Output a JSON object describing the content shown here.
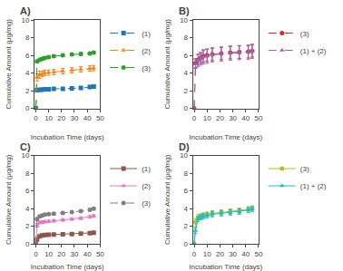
{
  "chart_data": [
    {
      "type": "line",
      "title": "A)",
      "xlabel": "Incubation Time (days)",
      "ylabel": "Cumulative Amount (μg/mg)",
      "x": [
        0,
        1,
        3,
        5,
        7,
        10,
        14,
        21,
        28,
        35,
        42,
        45
      ],
      "series": [
        {
          "name": "(1)",
          "marker": "square",
          "line_style": "dashed",
          "values": [
            0,
            2.05,
            2.1,
            2.1,
            2.15,
            2.15,
            2.2,
            2.2,
            2.25,
            2.3,
            2.4,
            2.45
          ],
          "errors": [
            0,
            0.08,
            0.08,
            0.08,
            0.08,
            0.08,
            0.08,
            0.08,
            0.08,
            0.08,
            0.08,
            0.08
          ]
        },
        {
          "name": "(2)",
          "marker": "triangle",
          "line_style": "dashed",
          "values": [
            0,
            3.5,
            3.8,
            3.9,
            4.0,
            4.05,
            4.1,
            4.2,
            4.3,
            4.4,
            4.5,
            4.55
          ],
          "errors": [
            0,
            0.4,
            0.4,
            0.3,
            0.3,
            0.3,
            0.3,
            0.3,
            0.3,
            0.3,
            0.3,
            0.3
          ]
        },
        {
          "name": "(3)",
          "marker": "circle",
          "line_style": "dashed",
          "values": [
            0,
            5.3,
            5.5,
            5.6,
            5.7,
            5.8,
            5.9,
            6.0,
            6.1,
            6.15,
            6.2,
            6.3
          ],
          "errors": [
            0,
            0.15,
            0.15,
            0.15,
            0.15,
            0.15,
            0.15,
            0.15,
            0.15,
            0.15,
            0.15,
            0.15
          ]
        }
      ],
      "xlim": [
        -1,
        50
      ],
      "ylim": [
        0,
        10
      ],
      "xticks": [
        0,
        10,
        20,
        30,
        40,
        50
      ],
      "yticks": [
        0,
        2,
        4,
        6,
        8,
        10
      ],
      "grid": false,
      "legend": "right"
    },
    {
      "type": "line",
      "title": "B)",
      "xlabel": "Incubation Time (days)",
      "ylabel": "Cumulative Amount (μg/mg)",
      "x": [
        0,
        1,
        3,
        5,
        7,
        10,
        14,
        21,
        28,
        35,
        42,
        45
      ],
      "series": [
        {
          "name": "(3)",
          "marker": "circle",
          "line_style": "dashed",
          "values": [
            0,
            5.1,
            5.5,
            5.7,
            5.9,
            6.0,
            6.1,
            6.2,
            6.3,
            6.35,
            6.4,
            6.5
          ],
          "errors": [
            0,
            0.5,
            0.6,
            0.6,
            0.7,
            0.7,
            0.7,
            0.7,
            0.7,
            0.7,
            0.7,
            0.7
          ]
        },
        {
          "name": "(1) + (2)",
          "marker": "triangle",
          "line_style": "dashed",
          "values": [
            0,
            5.0,
            5.4,
            5.6,
            5.8,
            5.9,
            6.05,
            6.15,
            6.25,
            6.3,
            6.35,
            6.45
          ],
          "errors": [
            0,
            0.5,
            0.7,
            0.7,
            0.8,
            0.8,
            0.8,
            0.8,
            0.8,
            0.8,
            0.8,
            0.8
          ]
        }
      ],
      "xlim": [
        -1,
        50
      ],
      "ylim": [
        0,
        10
      ],
      "xticks": [
        0,
        10,
        20,
        30,
        40,
        50
      ],
      "yticks": [
        0,
        2,
        4,
        6,
        8,
        10
      ],
      "grid": false,
      "legend": "right"
    },
    {
      "type": "line",
      "title": "C)",
      "xlabel": "Incubation Time (days)",
      "ylabel": "Cumulative Amount (μg/mg)",
      "x": [
        0,
        1,
        3,
        5,
        7,
        10,
        14,
        21,
        28,
        35,
        42,
        45
      ],
      "series": [
        {
          "name": "(1)",
          "marker": "square",
          "line_style": "solid",
          "values": [
            0,
            0.5,
            0.85,
            0.95,
            1.0,
            1.02,
            1.05,
            1.08,
            1.1,
            1.15,
            1.2,
            1.25
          ],
          "errors": [
            0,
            0.15,
            0.1,
            0.1,
            0.1,
            0.1,
            0.1,
            0.1,
            0.1,
            0.1,
            0.1,
            0.1
          ]
        },
        {
          "name": "(2)",
          "marker": "triangle",
          "line_style": "solid",
          "values": [
            0,
            2.1,
            2.4,
            2.45,
            2.5,
            2.55,
            2.6,
            2.7,
            2.8,
            2.9,
            3.05,
            3.15
          ],
          "errors": [
            0,
            0.2,
            0.15,
            0.15,
            0.15,
            0.15,
            0.15,
            0.15,
            0.15,
            0.15,
            0.15,
            0.15
          ]
        },
        {
          "name": "(3)",
          "marker": "circle",
          "line_style": "dashed",
          "values": [
            0,
            2.8,
            3.1,
            3.2,
            3.3,
            3.35,
            3.4,
            3.5,
            3.6,
            3.7,
            3.85,
            3.98
          ],
          "errors": [
            0,
            0.15,
            0.12,
            0.12,
            0.12,
            0.12,
            0.12,
            0.12,
            0.12,
            0.12,
            0.12,
            0.12
          ]
        }
      ],
      "xlim": [
        -1,
        50
      ],
      "ylim": [
        0,
        10
      ],
      "xticks": [
        0,
        10,
        20,
        30,
        40,
        50
      ],
      "yticks": [
        0,
        2,
        4,
        6,
        8,
        10
      ],
      "grid": false,
      "legend": "right"
    },
    {
      "type": "line",
      "title": "D)",
      "xlabel": "Incubation Time (days)",
      "ylabel": "Cumulative Amount (μg/mg)",
      "x": [
        0,
        1,
        3,
        5,
        7,
        10,
        14,
        21,
        28,
        35,
        42,
        45
      ],
      "series": [
        {
          "name": "(3)",
          "marker": "circle",
          "line_style": "solid",
          "values": [
            0,
            2.5,
            3.0,
            3.1,
            3.2,
            3.3,
            3.45,
            3.55,
            3.65,
            3.75,
            3.9,
            4.0
          ],
          "errors": [
            0,
            0.35,
            0.3,
            0.3,
            0.3,
            0.3,
            0.3,
            0.3,
            0.3,
            0.3,
            0.3,
            0.3
          ]
        },
        {
          "name": "(1) + (2)",
          "marker": "triangle",
          "line_style": "solid",
          "values": [
            0,
            1.5,
            2.8,
            3.0,
            3.1,
            3.2,
            3.35,
            3.45,
            3.55,
            3.65,
            3.82,
            3.92
          ],
          "errors": [
            0,
            0.35,
            0.3,
            0.3,
            0.3,
            0.3,
            0.3,
            0.3,
            0.3,
            0.3,
            0.3,
            0.3
          ]
        }
      ],
      "xlim": [
        -1,
        50
      ],
      "ylim": [
        0,
        10
      ],
      "xticks": [
        0,
        10,
        20,
        30,
        40,
        50
      ],
      "yticks": [
        0,
        2,
        4,
        6,
        8,
        10
      ],
      "grid": false,
      "legend": "right"
    }
  ]
}
